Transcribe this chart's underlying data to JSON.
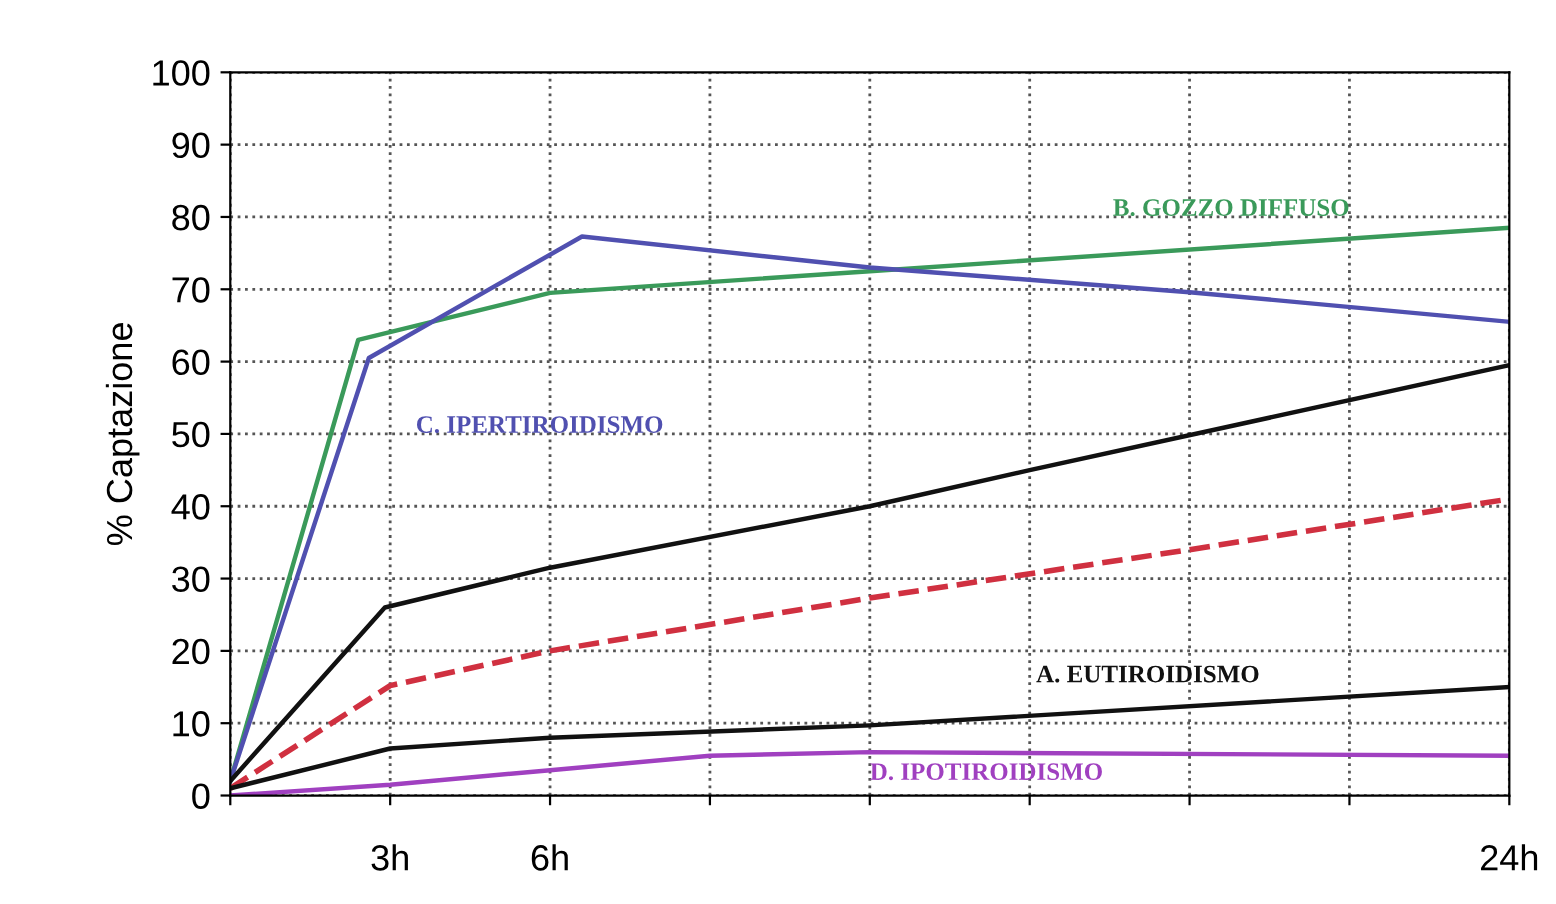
{
  "chart_data": {
    "type": "line",
    "ylabel": "% Captazione",
    "xlim": [
      0,
      24
    ],
    "ylim": [
      0,
      100
    ],
    "xticks": [
      {
        "value": 0,
        "label": null
      },
      {
        "value": 3,
        "label": "3h"
      },
      {
        "value": 6,
        "label": "6h"
      },
      {
        "value": 9,
        "label": null
      },
      {
        "value": 12,
        "label": null
      },
      {
        "value": 15,
        "label": null
      },
      {
        "value": 18,
        "label": null
      },
      {
        "value": 21,
        "label": null
      },
      {
        "value": 24,
        "label": "24h"
      }
    ],
    "yticks": [
      0,
      10,
      20,
      30,
      40,
      50,
      60,
      70,
      80,
      90,
      100
    ],
    "grid": true,
    "marker": "none",
    "series": [
      {
        "name": "B. GOZZO DIFFUSO",
        "color": "#3a9a5a",
        "x": [
          0,
          2.4,
          6,
          12,
          24
        ],
        "values": [
          2,
          63,
          69.5,
          72.5,
          78.5
        ]
      },
      {
        "name": "C. IPERTIROIDISMO",
        "color": "#5050b0",
        "x": [
          0,
          2.6,
          6.6,
          12,
          18,
          24
        ],
        "values": [
          2,
          60.5,
          77.3,
          73,
          69.6,
          65.5
        ]
      },
      {
        "color": "#111111",
        "x": [
          0,
          2.9,
          6,
          12,
          15,
          24
        ],
        "values": [
          2,
          26,
          31.5,
          40,
          45,
          59.5
        ]
      },
      {
        "color": "#d03040",
        "line_style": "dashed",
        "x": [
          0,
          3,
          6,
          12,
          18,
          24
        ],
        "values": [
          1,
          15.2,
          20,
          27.3,
          34,
          41
        ]
      },
      {
        "name": "A. EUTIROIDISMO",
        "color": "#111111",
        "x": [
          0,
          3,
          6,
          12,
          24
        ],
        "values": [
          1,
          6.5,
          8,
          9.7,
          15
        ]
      },
      {
        "name": "D. IPOTIROIDISMO",
        "color": "#a040c0",
        "x": [
          0,
          3,
          6,
          9,
          12,
          24
        ],
        "values": [
          0,
          1.5,
          3.5,
          5.5,
          6,
          5.5
        ]
      }
    ]
  }
}
